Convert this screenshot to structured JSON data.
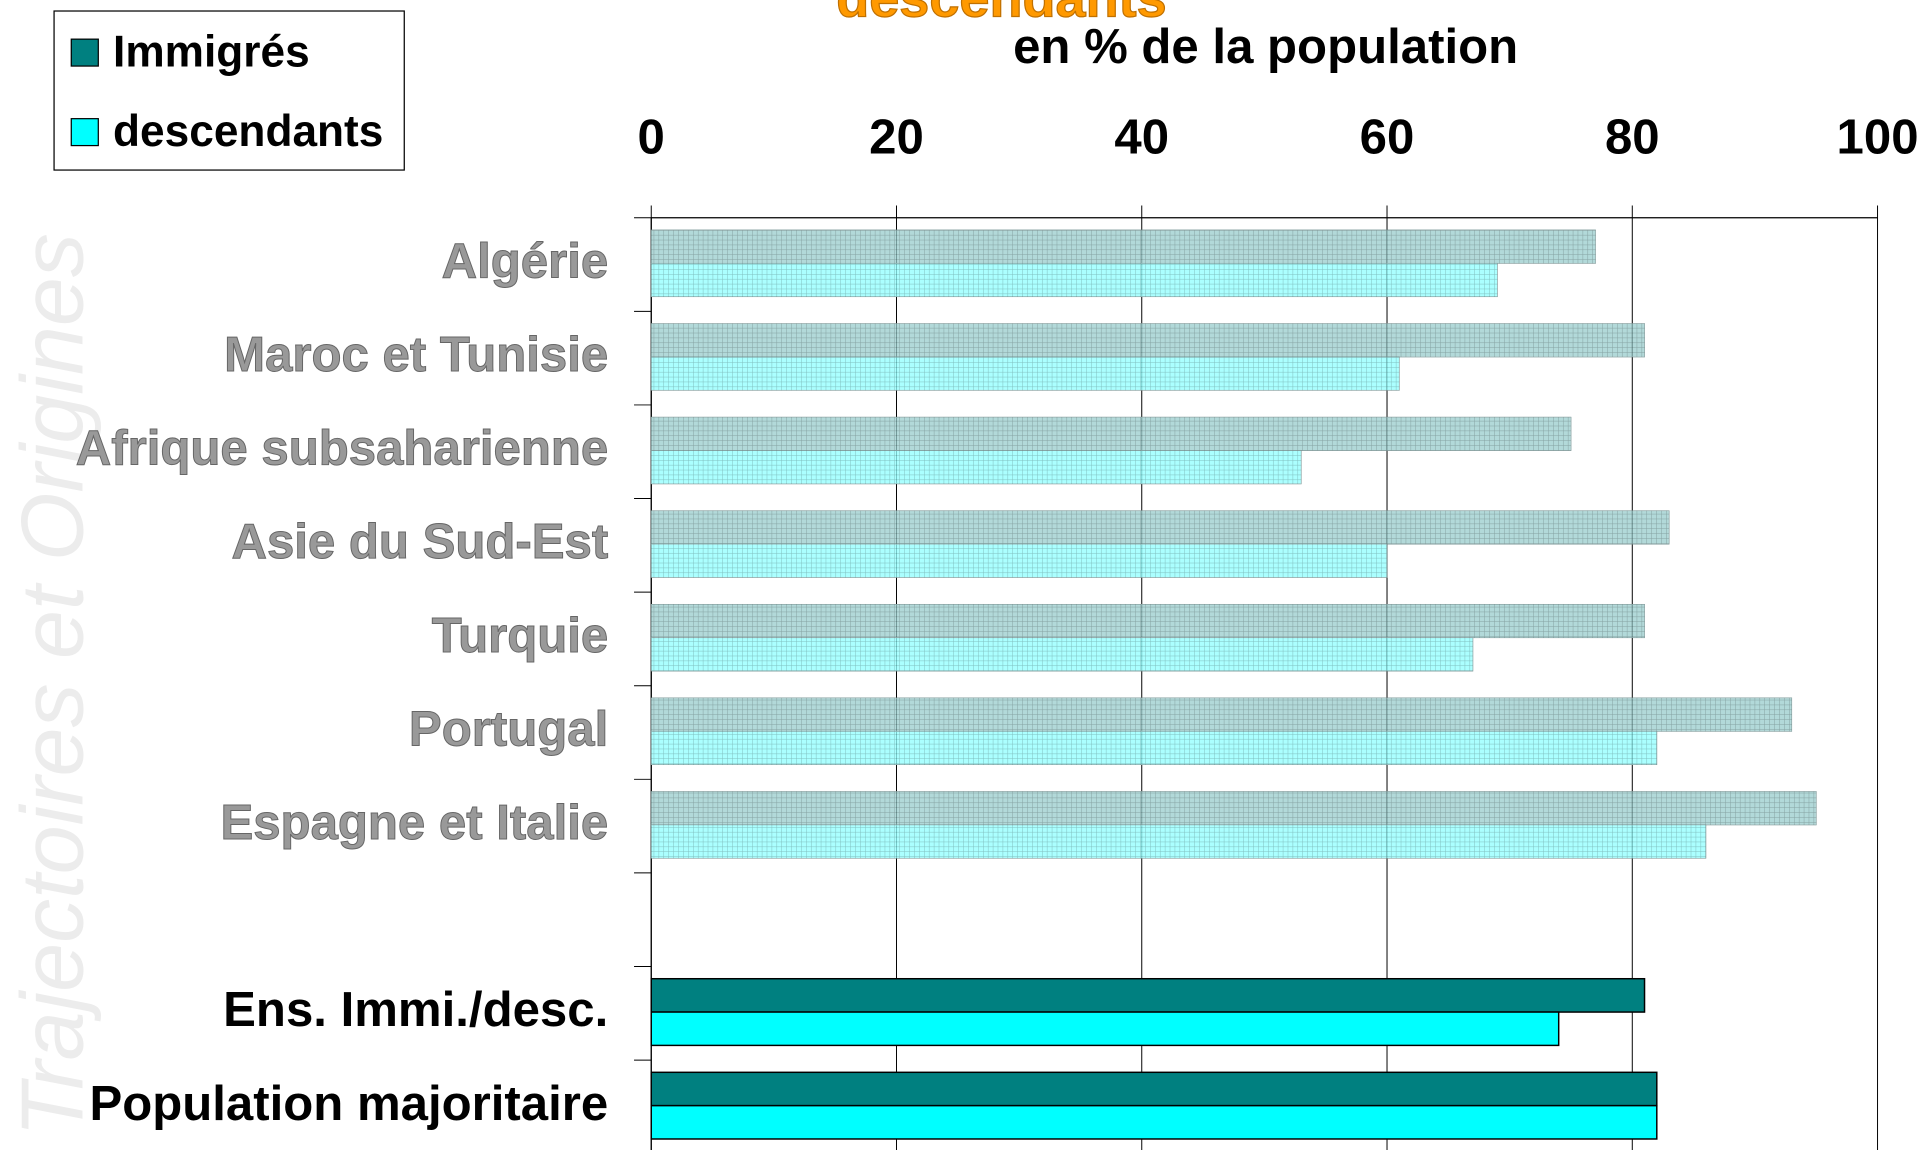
{
  "chart_data": {
    "type": "bar",
    "orientation": "horizontal",
    "title": "descendants",
    "subtitle": "en % de la population",
    "watermark": "Trajectoires et Origines",
    "categories": [
      "Algérie",
      "Maroc et Tunisie",
      "Afrique subsaharienne",
      "Asie du Sud-Est",
      "Turquie",
      "Portugal",
      "Espagne et Italie",
      null,
      "Ens. Immi./desc.",
      "Population majoritaire"
    ],
    "series": [
      {
        "name": "Immigrés",
        "color": "#008080",
        "values": [
          77,
          81,
          75,
          83,
          81,
          93,
          95,
          null,
          81,
          82
        ]
      },
      {
        "name": "descendants",
        "color": "#00ffff",
        "values": [
          69,
          61,
          53,
          60,
          67,
          82,
          86,
          null,
          74,
          82
        ]
      }
    ],
    "xlim": [
      0,
      100
    ],
    "xticks": [
      0,
      20,
      40,
      60,
      80,
      100
    ],
    "grid": true,
    "legend": "top-left"
  }
}
